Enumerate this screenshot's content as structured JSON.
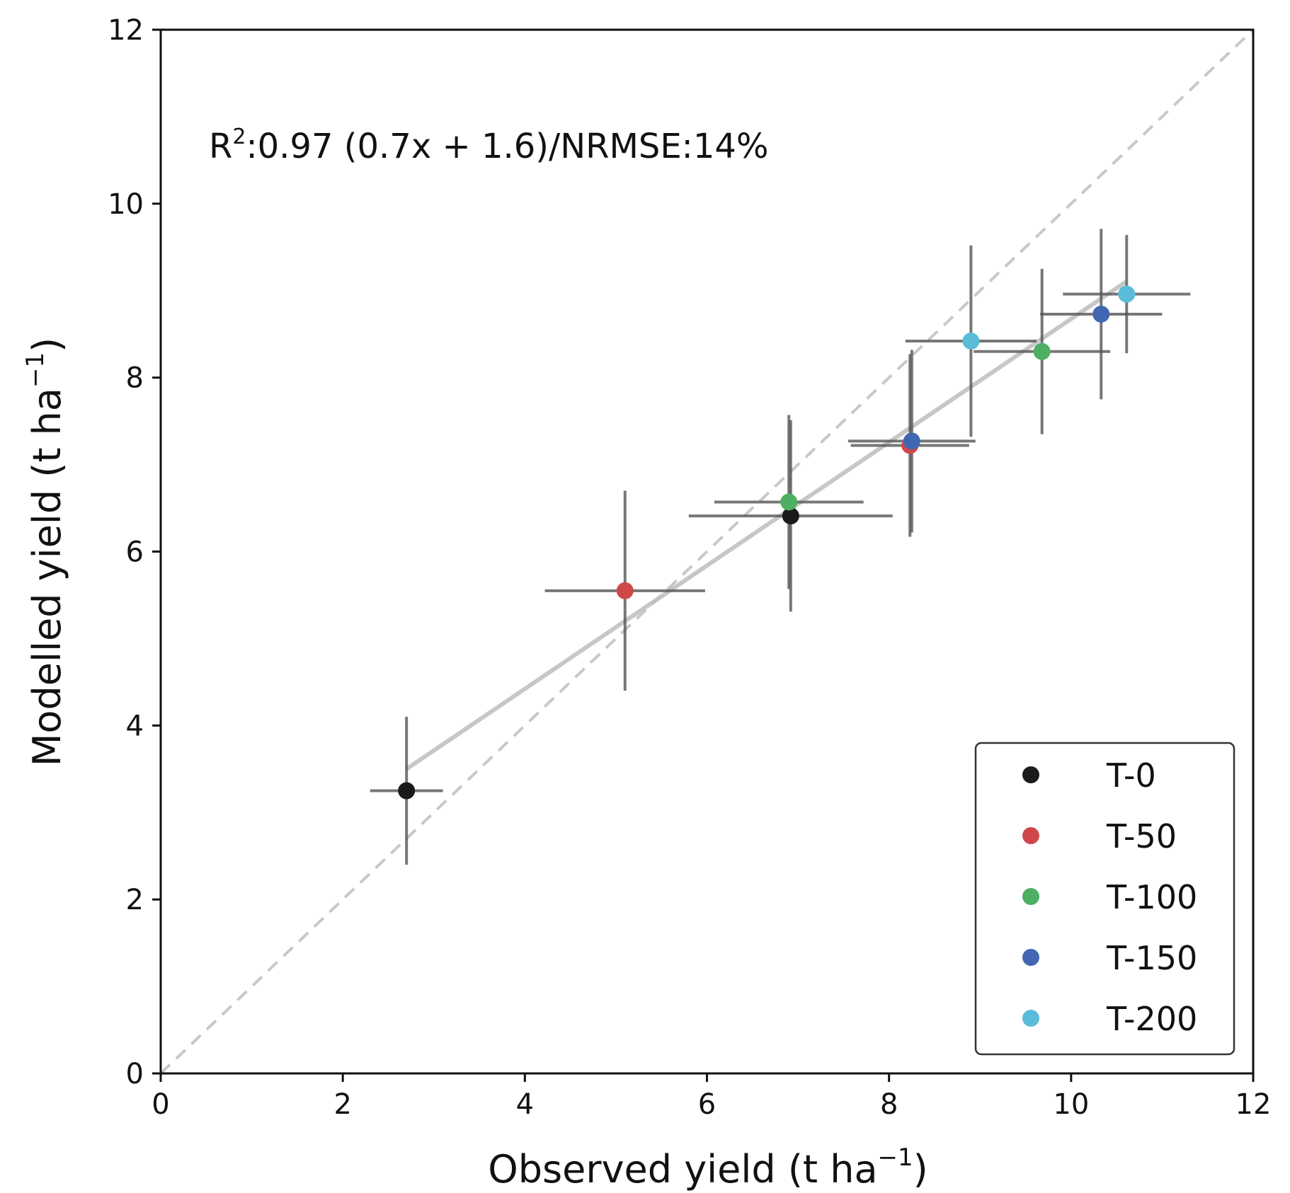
{
  "chart_data": {
    "type": "scatter",
    "title": "",
    "xlabel": "Observed yield (t ha",
    "xlabel_sup": "−1",
    "xlabel_end": ")",
    "ylabel": "Modelled yield (t ha",
    "ylabel_sup": "−1",
    "ylabel_end": ")",
    "xlim": [
      0,
      12
    ],
    "ylim": [
      0,
      12
    ],
    "xticks": [
      "0",
      "2",
      "4",
      "6",
      "8",
      "10",
      "12"
    ],
    "yticks": [
      "0",
      "2",
      "4",
      "6",
      "8",
      "10",
      "12"
    ],
    "xtick_values": [
      0,
      2,
      4,
      6,
      8,
      10,
      12
    ],
    "ytick_values": [
      0,
      2,
      4,
      6,
      8,
      10,
      12
    ],
    "grid": false,
    "legend_position": "bottom-right",
    "annotation": {
      "prefix": "R",
      "sup": "2",
      "text": ":0.97 (0.7x + 1.6)/NRMSE:14%"
    },
    "one_to_one_line": {
      "x": [
        0,
        12
      ],
      "y": [
        0,
        12
      ],
      "style": "dashed",
      "color": "#c8c8c8"
    },
    "regression_line": {
      "x": [
        2.7,
        10.6
      ],
      "y": [
        3.5,
        9.1
      ],
      "color": "#bdbdbd"
    },
    "series": [
      {
        "name": "T-0",
        "color": "#1a1a1a",
        "points": [
          {
            "x": 2.7,
            "y": 3.25,
            "xerr": 0.4,
            "yerr": 0.85
          },
          {
            "x": 6.92,
            "y": 6.41,
            "xerr": 1.12,
            "yerr": 1.1
          }
        ]
      },
      {
        "name": "T-50",
        "color": "#d0474a",
        "points": [
          {
            "x": 5.1,
            "y": 5.55,
            "xerr": 0.88,
            "yerr": 1.15
          },
          {
            "x": 8.23,
            "y": 7.22,
            "xerr": 0.65,
            "yerr": 1.05
          }
        ]
      },
      {
        "name": "T-100",
        "color": "#4eae62",
        "points": [
          {
            "x": 6.9,
            "y": 6.57,
            "xerr": 0.82,
            "yerr": 1.0
          },
          {
            "x": 9.68,
            "y": 8.3,
            "xerr": 0.75,
            "yerr": 0.95
          }
        ]
      },
      {
        "name": "T-150",
        "color": "#4267b2",
        "points": [
          {
            "x": 8.25,
            "y": 7.27,
            "xerr": 0.7,
            "yerr": 1.05
          },
          {
            "x": 10.33,
            "y": 8.73,
            "xerr": 0.67,
            "yerr": 0.98
          }
        ]
      },
      {
        "name": "T-200",
        "color": "#5bbcd9",
        "points": [
          {
            "x": 8.9,
            "y": 8.42,
            "xerr": 0.72,
            "yerr": 1.1
          },
          {
            "x": 10.61,
            "y": 8.96,
            "xerr": 0.7,
            "yerr": 0.68
          }
        ]
      }
    ]
  }
}
